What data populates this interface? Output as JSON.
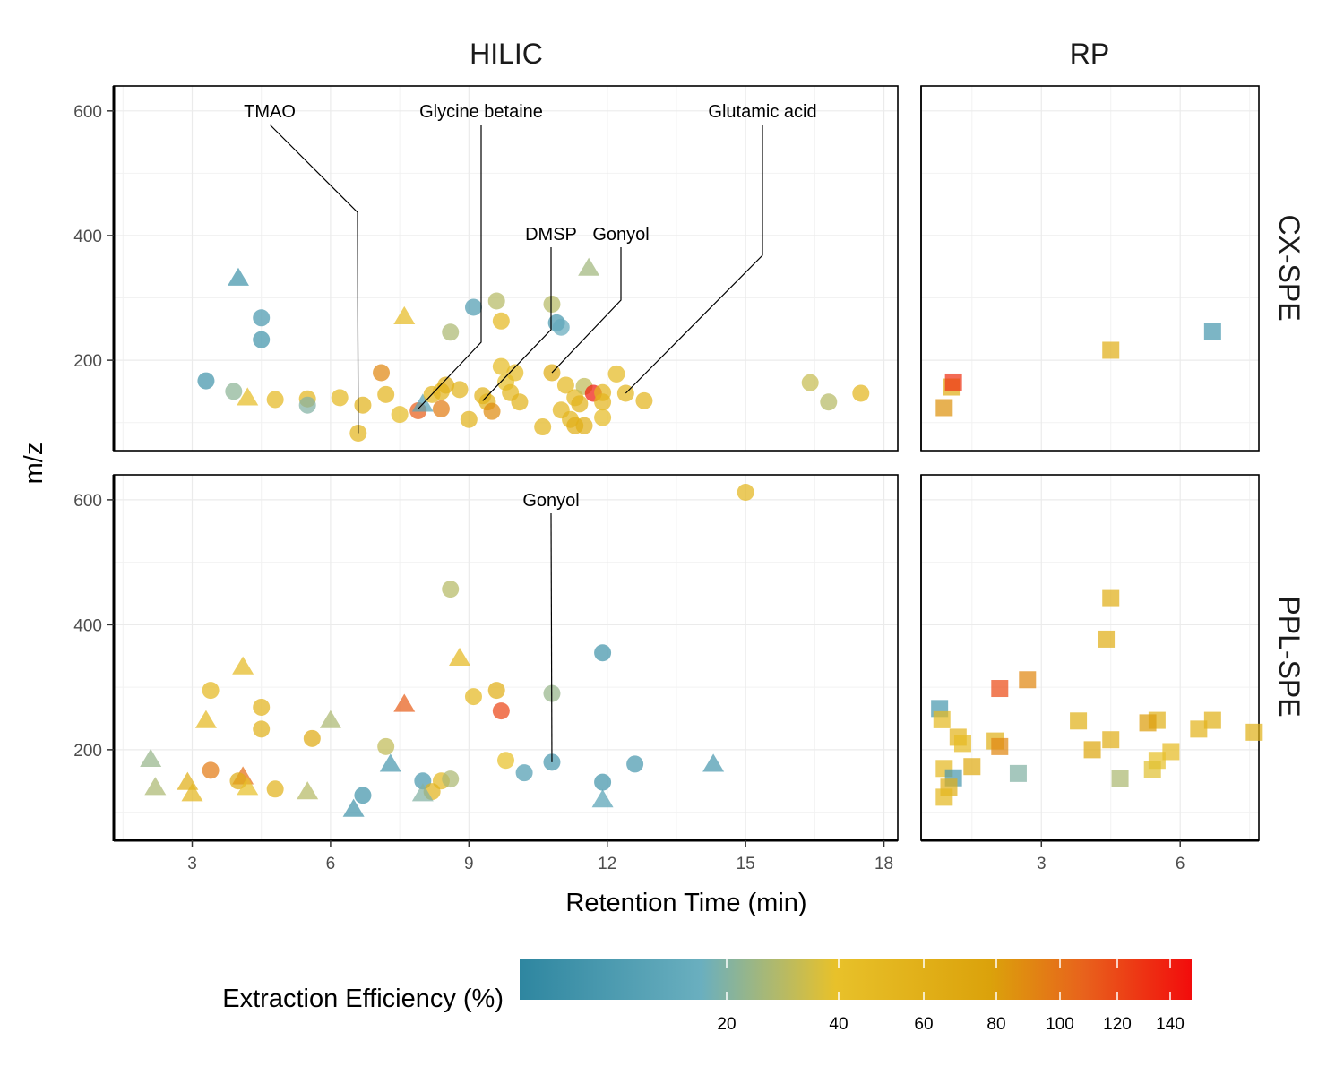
{
  "chart_data": {
    "type": "scatter",
    "xlabel": "Retention Time (min)",
    "ylabel": "m/z",
    "columns": [
      "HILIC",
      "RP"
    ],
    "rows": [
      "CX-SPE",
      "PPL-SPE"
    ],
    "ylim": [
      55,
      640
    ],
    "yticks": [
      200,
      400,
      600
    ],
    "xlim_hilic": [
      1.3,
      18.3
    ],
    "xticks_hilic": [
      3,
      6,
      9,
      12,
      15,
      18
    ],
    "xlim_rp": [
      0.4,
      7.7
    ],
    "xticks_rp": [
      3,
      6
    ],
    "grid": true,
    "legend": {
      "title": "Extraction Efficiency (%)",
      "position": "bottom",
      "ticks": [
        20,
        40,
        60,
        80,
        100,
        120,
        140
      ],
      "colors": [
        "#2E86A0",
        "#6AAFBF",
        "#E8C12A",
        "#DBA20B",
        "#E8621C",
        "#F20C0C"
      ]
    },
    "panels": [
      {
        "column": "HILIC",
        "row": "CX-SPE",
        "points": [
          {
            "x": 3.3,
            "y": 167,
            "shape": "circle",
            "eff": 6
          },
          {
            "x": 4.0,
            "y": 332,
            "shape": "triangle",
            "eff": 6
          },
          {
            "x": 4.5,
            "y": 268,
            "shape": "circle",
            "eff": 8
          },
          {
            "x": 4.5,
            "y": 233,
            "shape": "circle",
            "eff": 6
          },
          {
            "x": 3.9,
            "y": 150,
            "shape": "circle",
            "eff": 22
          },
          {
            "x": 4.2,
            "y": 140,
            "shape": "triangle",
            "eff": 44
          },
          {
            "x": 4.8,
            "y": 137,
            "shape": "circle",
            "eff": 50
          },
          {
            "x": 5.5,
            "y": 138,
            "shape": "circle",
            "eff": 52
          },
          {
            "x": 5.5,
            "y": 128,
            "shape": "circle",
            "eff": 20
          },
          {
            "x": 6.2,
            "y": 140,
            "shape": "circle",
            "eff": 50
          },
          {
            "x": 6.7,
            "y": 128,
            "shape": "circle",
            "eff": 56
          },
          {
            "x": 6.6,
            "y": 83,
            "shape": "circle",
            "eff": 52
          },
          {
            "x": 7.1,
            "y": 180,
            "shape": "circle",
            "eff": 90
          },
          {
            "x": 7.2,
            "y": 145,
            "shape": "circle",
            "eff": 54
          },
          {
            "x": 7.5,
            "y": 113,
            "shape": "circle",
            "eff": 44
          },
          {
            "x": 7.6,
            "y": 270,
            "shape": "triangle",
            "eff": 46
          },
          {
            "x": 7.9,
            "y": 119,
            "shape": "circle",
            "eff": 110
          },
          {
            "x": 8.0,
            "y": 130,
            "shape": "triangle",
            "eff": 12
          },
          {
            "x": 8.2,
            "y": 145,
            "shape": "circle",
            "eff": 52
          },
          {
            "x": 8.4,
            "y": 122,
            "shape": "circle",
            "eff": 95
          },
          {
            "x": 8.5,
            "y": 160,
            "shape": "circle",
            "eff": 62
          },
          {
            "x": 8.4,
            "y": 150,
            "shape": "circle",
            "eff": 56
          },
          {
            "x": 8.6,
            "y": 245,
            "shape": "circle",
            "eff": 28
          },
          {
            "x": 8.8,
            "y": 153,
            "shape": "circle",
            "eff": 55
          },
          {
            "x": 9.0,
            "y": 105,
            "shape": "circle",
            "eff": 56
          },
          {
            "x": 9.1,
            "y": 285,
            "shape": "circle",
            "eff": 10
          },
          {
            "x": 9.3,
            "y": 143,
            "shape": "circle",
            "eff": 56
          },
          {
            "x": 9.4,
            "y": 133,
            "shape": "circle",
            "eff": 56
          },
          {
            "x": 9.5,
            "y": 118,
            "shape": "circle",
            "eff": 88
          },
          {
            "x": 9.6,
            "y": 295,
            "shape": "circle",
            "eff": 30
          },
          {
            "x": 9.7,
            "y": 263,
            "shape": "circle",
            "eff": 50
          },
          {
            "x": 9.7,
            "y": 190,
            "shape": "circle",
            "eff": 44
          },
          {
            "x": 9.8,
            "y": 165,
            "shape": "circle",
            "eff": 40
          },
          {
            "x": 9.9,
            "y": 148,
            "shape": "circle",
            "eff": 52
          },
          {
            "x": 10.0,
            "y": 180,
            "shape": "circle",
            "eff": 46
          },
          {
            "x": 10.1,
            "y": 133,
            "shape": "circle",
            "eff": 56
          },
          {
            "x": 10.6,
            "y": 93,
            "shape": "circle",
            "eff": 52
          },
          {
            "x": 10.8,
            "y": 290,
            "shape": "circle",
            "eff": 30
          },
          {
            "x": 10.8,
            "y": 180,
            "shape": "circle",
            "eff": 64
          },
          {
            "x": 10.9,
            "y": 260,
            "shape": "circle",
            "eff": 8
          },
          {
            "x": 11.0,
            "y": 253,
            "shape": "circle",
            "eff": 16
          },
          {
            "x": 11.0,
            "y": 120,
            "shape": "circle",
            "eff": 52
          },
          {
            "x": 11.1,
            "y": 160,
            "shape": "circle",
            "eff": 50
          },
          {
            "x": 11.2,
            "y": 105,
            "shape": "circle",
            "eff": 52
          },
          {
            "x": 11.3,
            "y": 140,
            "shape": "circle",
            "eff": 50
          },
          {
            "x": 11.4,
            "y": 130,
            "shape": "circle",
            "eff": 56
          },
          {
            "x": 11.3,
            "y": 95,
            "shape": "circle",
            "eff": 60
          },
          {
            "x": 11.5,
            "y": 95,
            "shape": "circle",
            "eff": 62
          },
          {
            "x": 11.5,
            "y": 158,
            "shape": "circle",
            "eff": 32
          },
          {
            "x": 11.6,
            "y": 348,
            "shape": "triangle",
            "eff": 26
          },
          {
            "x": 11.7,
            "y": 147,
            "shape": "circle",
            "eff": 140
          },
          {
            "x": 11.9,
            "y": 148,
            "shape": "circle",
            "eff": 52
          },
          {
            "x": 11.9,
            "y": 133,
            "shape": "circle",
            "eff": 54
          },
          {
            "x": 11.9,
            "y": 108,
            "shape": "circle",
            "eff": 46
          },
          {
            "x": 12.2,
            "y": 178,
            "shape": "circle",
            "eff": 48
          },
          {
            "x": 12.4,
            "y": 147,
            "shape": "circle",
            "eff": 52
          },
          {
            "x": 12.8,
            "y": 135,
            "shape": "circle",
            "eff": 54
          },
          {
            "x": 16.4,
            "y": 164,
            "shape": "circle",
            "eff": 33
          },
          {
            "x": 16.8,
            "y": 133,
            "shape": "circle",
            "eff": 30
          },
          {
            "x": 17.5,
            "y": 147,
            "shape": "circle",
            "eff": 52
          }
        ],
        "annotations": [
          {
            "label": "TMAO",
            "x": 6.6,
            "y": 83
          },
          {
            "label": "Glycine betaine",
            "x": 7.9,
            "y": 122
          },
          {
            "label": "DMSP",
            "x": 9.3,
            "y": 135
          },
          {
            "label": "Gonyol",
            "x": 10.8,
            "y": 180
          },
          {
            "label": "Glutamic acid",
            "x": 12.4,
            "y": 147
          }
        ]
      },
      {
        "column": "RP",
        "row": "CX-SPE",
        "points": [
          {
            "x": 0.9,
            "y": 124,
            "shape": "square",
            "eff": 85
          },
          {
            "x": 1.05,
            "y": 157,
            "shape": "square",
            "eff": 62
          },
          {
            "x": 1.1,
            "y": 165,
            "shape": "square",
            "eff": 130
          },
          {
            "x": 4.5,
            "y": 216,
            "shape": "square",
            "eff": 62
          },
          {
            "x": 6.7,
            "y": 246,
            "shape": "square",
            "eff": 8
          }
        ],
        "annotations": []
      },
      {
        "column": "HILIC",
        "row": "PPL-SPE",
        "points": [
          {
            "x": 15.0,
            "y": 612,
            "shape": "circle",
            "eff": 52
          },
          {
            "x": 8.6,
            "y": 457,
            "shape": "circle",
            "eff": 30
          },
          {
            "x": 11.9,
            "y": 355,
            "shape": "circle",
            "eff": 6
          },
          {
            "x": 8.8,
            "y": 347,
            "shape": "triangle",
            "eff": 50
          },
          {
            "x": 4.1,
            "y": 333,
            "shape": "triangle",
            "eff": 48
          },
          {
            "x": 3.4,
            "y": 295,
            "shape": "circle",
            "eff": 50
          },
          {
            "x": 9.6,
            "y": 295,
            "shape": "circle",
            "eff": 62
          },
          {
            "x": 9.1,
            "y": 285,
            "shape": "circle",
            "eff": 50
          },
          {
            "x": 10.8,
            "y": 290,
            "shape": "circle",
            "eff": 24
          },
          {
            "x": 7.6,
            "y": 273,
            "shape": "triangle",
            "eff": 110
          },
          {
            "x": 4.5,
            "y": 268,
            "shape": "circle",
            "eff": 56
          },
          {
            "x": 9.7,
            "y": 262,
            "shape": "circle",
            "eff": 120
          },
          {
            "x": 6.0,
            "y": 247,
            "shape": "triangle",
            "eff": 28
          },
          {
            "x": 3.3,
            "y": 247,
            "shape": "triangle",
            "eff": 50
          },
          {
            "x": 4.5,
            "y": 233,
            "shape": "circle",
            "eff": 58
          },
          {
            "x": 5.6,
            "y": 218,
            "shape": "circle",
            "eff": 66
          },
          {
            "x": 7.2,
            "y": 205,
            "shape": "circle",
            "eff": 32
          },
          {
            "x": 2.1,
            "y": 185,
            "shape": "triangle",
            "eff": 24
          },
          {
            "x": 9.8,
            "y": 183,
            "shape": "circle",
            "eff": 40
          },
          {
            "x": 10.8,
            "y": 180,
            "shape": "circle",
            "eff": 8
          },
          {
            "x": 12.6,
            "y": 177,
            "shape": "circle",
            "eff": 8
          },
          {
            "x": 7.3,
            "y": 177,
            "shape": "triangle",
            "eff": 8
          },
          {
            "x": 14.3,
            "y": 177,
            "shape": "triangle",
            "eff": 8
          },
          {
            "x": 3.4,
            "y": 167,
            "shape": "circle",
            "eff": 96
          },
          {
            "x": 10.2,
            "y": 163,
            "shape": "circle",
            "eff": 10
          },
          {
            "x": 4.1,
            "y": 157,
            "shape": "triangle",
            "eff": 102
          },
          {
            "x": 4.0,
            "y": 150,
            "shape": "circle",
            "eff": 64
          },
          {
            "x": 8.0,
            "y": 150,
            "shape": "circle",
            "eff": 8
          },
          {
            "x": 8.4,
            "y": 150,
            "shape": "circle",
            "eff": 50
          },
          {
            "x": 8.6,
            "y": 153,
            "shape": "circle",
            "eff": 28
          },
          {
            "x": 11.9,
            "y": 148,
            "shape": "circle",
            "eff": 6
          },
          {
            "x": 2.9,
            "y": 148,
            "shape": "triangle",
            "eff": 60
          },
          {
            "x": 2.2,
            "y": 140,
            "shape": "triangle",
            "eff": 28
          },
          {
            "x": 4.2,
            "y": 140,
            "shape": "triangle",
            "eff": 40
          },
          {
            "x": 4.8,
            "y": 137,
            "shape": "circle",
            "eff": 56
          },
          {
            "x": 5.5,
            "y": 133,
            "shape": "triangle",
            "eff": 30
          },
          {
            "x": 8.2,
            "y": 133,
            "shape": "circle",
            "eff": 56
          },
          {
            "x": 3.0,
            "y": 130,
            "shape": "triangle",
            "eff": 52
          },
          {
            "x": 8.0,
            "y": 130,
            "shape": "triangle",
            "eff": 20
          },
          {
            "x": 6.7,
            "y": 127,
            "shape": "circle",
            "eff": 6
          },
          {
            "x": 11.9,
            "y": 120,
            "shape": "triangle",
            "eff": 12
          },
          {
            "x": 6.5,
            "y": 105,
            "shape": "triangle",
            "eff": 6
          }
        ],
        "annotations": [
          {
            "label": "Gonyol",
            "x": 10.8,
            "y": 180
          }
        ]
      },
      {
        "column": "RP",
        "row": "PPL-SPE",
        "points": [
          {
            "x": 4.5,
            "y": 442,
            "shape": "square",
            "eff": 60
          },
          {
            "x": 4.4,
            "y": 377,
            "shape": "square",
            "eff": 60
          },
          {
            "x": 2.7,
            "y": 312,
            "shape": "square",
            "eff": 90
          },
          {
            "x": 2.1,
            "y": 298,
            "shape": "square",
            "eff": 118
          },
          {
            "x": 0.8,
            "y": 266,
            "shape": "square",
            "eff": 8
          },
          {
            "x": 0.85,
            "y": 248,
            "shape": "square",
            "eff": 48
          },
          {
            "x": 3.8,
            "y": 246,
            "shape": "square",
            "eff": 58
          },
          {
            "x": 6.7,
            "y": 247,
            "shape": "square",
            "eff": 58
          },
          {
            "x": 5.5,
            "y": 247,
            "shape": "square",
            "eff": 58
          },
          {
            "x": 5.3,
            "y": 243,
            "shape": "square",
            "eff": 80
          },
          {
            "x": 6.4,
            "y": 233,
            "shape": "square",
            "eff": 54
          },
          {
            "x": 7.6,
            "y": 228,
            "shape": "square",
            "eff": 58
          },
          {
            "x": 1.2,
            "y": 220,
            "shape": "square",
            "eff": 54
          },
          {
            "x": 4.5,
            "y": 216,
            "shape": "square",
            "eff": 60
          },
          {
            "x": 1.3,
            "y": 210,
            "shape": "square",
            "eff": 46
          },
          {
            "x": 2.0,
            "y": 214,
            "shape": "square",
            "eff": 58
          },
          {
            "x": 2.1,
            "y": 205,
            "shape": "square",
            "eff": 90
          },
          {
            "x": 4.1,
            "y": 200,
            "shape": "square",
            "eff": 70
          },
          {
            "x": 5.8,
            "y": 197,
            "shape": "square",
            "eff": 46
          },
          {
            "x": 5.5,
            "y": 183,
            "shape": "square",
            "eff": 40
          },
          {
            "x": 1.5,
            "y": 173,
            "shape": "square",
            "eff": 66
          },
          {
            "x": 0.9,
            "y": 170,
            "shape": "square",
            "eff": 50
          },
          {
            "x": 2.5,
            "y": 162,
            "shape": "square",
            "eff": 20
          },
          {
            "x": 5.4,
            "y": 168,
            "shape": "square",
            "eff": 38
          },
          {
            "x": 4.7,
            "y": 154,
            "shape": "square",
            "eff": 28
          },
          {
            "x": 1.1,
            "y": 155,
            "shape": "square",
            "eff": 8
          },
          {
            "x": 1.0,
            "y": 140,
            "shape": "square",
            "eff": 60
          },
          {
            "x": 0.9,
            "y": 124,
            "shape": "square",
            "eff": 50
          }
        ],
        "annotations": []
      }
    ]
  }
}
